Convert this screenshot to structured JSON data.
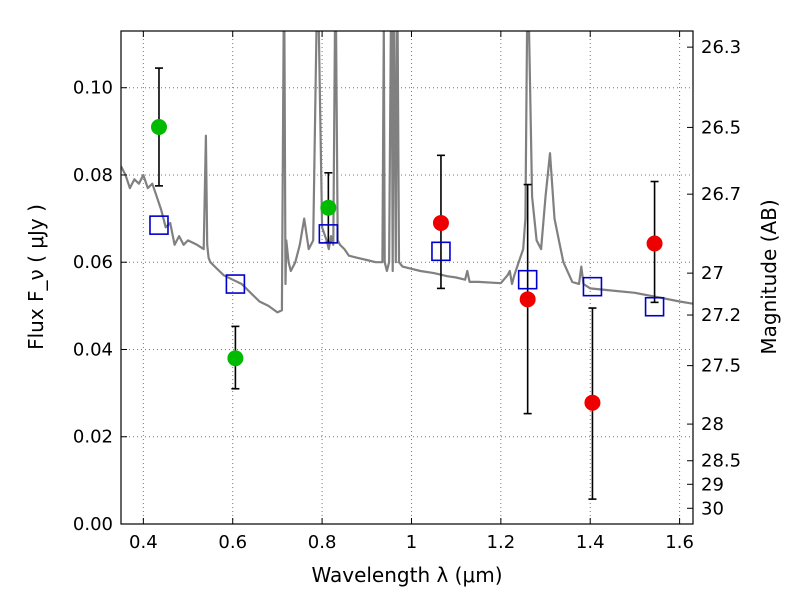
{
  "chart_data": {
    "type": "scatter",
    "xlabel": "Wavelength  λ (μm)",
    "ylabel_left": "Flux  F_ν  ( μJy )",
    "ylabel_right": "Magnitude (AB)",
    "xlim": [
      0.35,
      1.63
    ],
    "ylim": [
      0.0,
      0.113
    ],
    "grid": true,
    "x_ticks": [
      0.4,
      0.6,
      0.8,
      1.0,
      1.2,
      1.4,
      1.6
    ],
    "x_tick_labels": [
      "0.4",
      "0.6",
      "0.8",
      "1",
      "1.2",
      "1.4",
      "1.6"
    ],
    "y_ticks": [
      0.0,
      0.02,
      0.04,
      0.06,
      0.08,
      0.1
    ],
    "y_tick_labels": [
      "0.00",
      "0.02",
      "0.04",
      "0.06",
      "0.08",
      "0.10"
    ],
    "right_ticks": [
      {
        "flux": 0.1093,
        "label": "26.3"
      },
      {
        "flux": 0.0909,
        "label": "26.5"
      },
      {
        "flux": 0.0756,
        "label": "26.7"
      },
      {
        "flux": 0.0575,
        "label": "27"
      },
      {
        "flux": 0.0479,
        "label": "27.2"
      },
      {
        "flux": 0.0363,
        "label": "27.5"
      },
      {
        "flux": 0.0229,
        "label": "28"
      },
      {
        "flux": 0.0145,
        "label": "28.5"
      },
      {
        "flux": 0.0091,
        "label": "29"
      },
      {
        "flux": 0.0036,
        "label": "30"
      }
    ],
    "observed_green": {
      "color": "#00bb00",
      "points": [
        {
          "x": 0.435,
          "y": 0.091,
          "ylo": 0.0775,
          "yhi": 0.1045
        },
        {
          "x": 0.606,
          "y": 0.038,
          "ylo": 0.031,
          "yhi": 0.0453
        },
        {
          "x": 0.814,
          "y": 0.0725,
          "ylo": 0.0645,
          "yhi": 0.0805
        }
      ]
    },
    "observed_red": {
      "color": "#ee0000",
      "points": [
        {
          "x": 1.066,
          "y": 0.069,
          "ylo": 0.054,
          "yhi": 0.0845
        },
        {
          "x": 1.26,
          "y": 0.0515,
          "ylo": 0.0253,
          "yhi": 0.0778
        },
        {
          "x": 1.405,
          "y": 0.0278,
          "ylo": 0.0057,
          "yhi": 0.0495
        },
        {
          "x": 1.544,
          "y": 0.0643,
          "ylo": 0.0508,
          "yhi": 0.0785
        }
      ]
    },
    "model_photometry": {
      "color": "#0000cc",
      "points": [
        {
          "x": 0.435,
          "y": 0.0685
        },
        {
          "x": 0.606,
          "y": 0.055
        },
        {
          "x": 0.814,
          "y": 0.0665
        },
        {
          "x": 1.066,
          "y": 0.0625
        },
        {
          "x": 1.26,
          "y": 0.056
        },
        {
          "x": 1.405,
          "y": 0.0544
        },
        {
          "x": 1.544,
          "y": 0.0498
        }
      ]
    },
    "model_spectrum": {
      "color": "#808080",
      "x": [
        0.35,
        0.36,
        0.37,
        0.38,
        0.39,
        0.4,
        0.41,
        0.42,
        0.43,
        0.44,
        0.45,
        0.46,
        0.47,
        0.48,
        0.49,
        0.5,
        0.52,
        0.535,
        0.54,
        0.543,
        0.546,
        0.55,
        0.56,
        0.58,
        0.6,
        0.62,
        0.64,
        0.66,
        0.68,
        0.7,
        0.71,
        0.715,
        0.718,
        0.72,
        0.725,
        0.73,
        0.74,
        0.75,
        0.76,
        0.77,
        0.78,
        0.79,
        0.8,
        0.81,
        0.815,
        0.82,
        0.825,
        0.83,
        0.835,
        0.84,
        0.85,
        0.86,
        0.88,
        0.9,
        0.92,
        0.935,
        0.938,
        0.94,
        0.945,
        0.95,
        0.955,
        0.958,
        0.96,
        0.965,
        0.968,
        0.972,
        0.98,
        1.0,
        1.02,
        1.05,
        1.08,
        1.1,
        1.12,
        1.125,
        1.13,
        1.15,
        1.2,
        1.215,
        1.22,
        1.225,
        1.23,
        1.24,
        1.25,
        1.255,
        1.26,
        1.27,
        1.28,
        1.29,
        1.3,
        1.31,
        1.32,
        1.33,
        1.34,
        1.36,
        1.375,
        1.38,
        1.385,
        1.4,
        1.45,
        1.5,
        1.55,
        1.6,
        1.63
      ],
      "y": [
        0.082,
        0.08,
        0.077,
        0.079,
        0.078,
        0.08,
        0.077,
        0.078,
        0.075,
        0.072,
        0.068,
        0.069,
        0.064,
        0.066,
        0.064,
        0.065,
        0.064,
        0.063,
        0.089,
        0.064,
        0.061,
        0.06,
        0.059,
        0.057,
        0.056,
        0.055,
        0.053,
        0.051,
        0.05,
        0.0485,
        0.049,
        0.13,
        0.055,
        0.065,
        0.06,
        0.058,
        0.06,
        0.064,
        0.07,
        0.063,
        0.065,
        0.13,
        0.068,
        0.065,
        0.063,
        0.066,
        0.064,
        0.13,
        0.065,
        0.064,
        0.063,
        0.0615,
        0.061,
        0.0605,
        0.06,
        0.06,
        0.114,
        0.06,
        0.058,
        0.06,
        0.13,
        0.058,
        0.13,
        0.06,
        0.13,
        0.06,
        0.059,
        0.0585,
        0.058,
        0.0575,
        0.0568,
        0.0565,
        0.056,
        0.058,
        0.0555,
        0.0555,
        0.0552,
        0.057,
        0.058,
        0.055,
        0.057,
        0.06,
        0.063,
        0.07,
        0.13,
        0.075,
        0.065,
        0.063,
        0.075,
        0.085,
        0.07,
        0.065,
        0.06,
        0.0555,
        0.055,
        0.059,
        0.055,
        0.054,
        0.0535,
        0.053,
        0.052,
        0.051,
        0.0505
      ]
    }
  }
}
